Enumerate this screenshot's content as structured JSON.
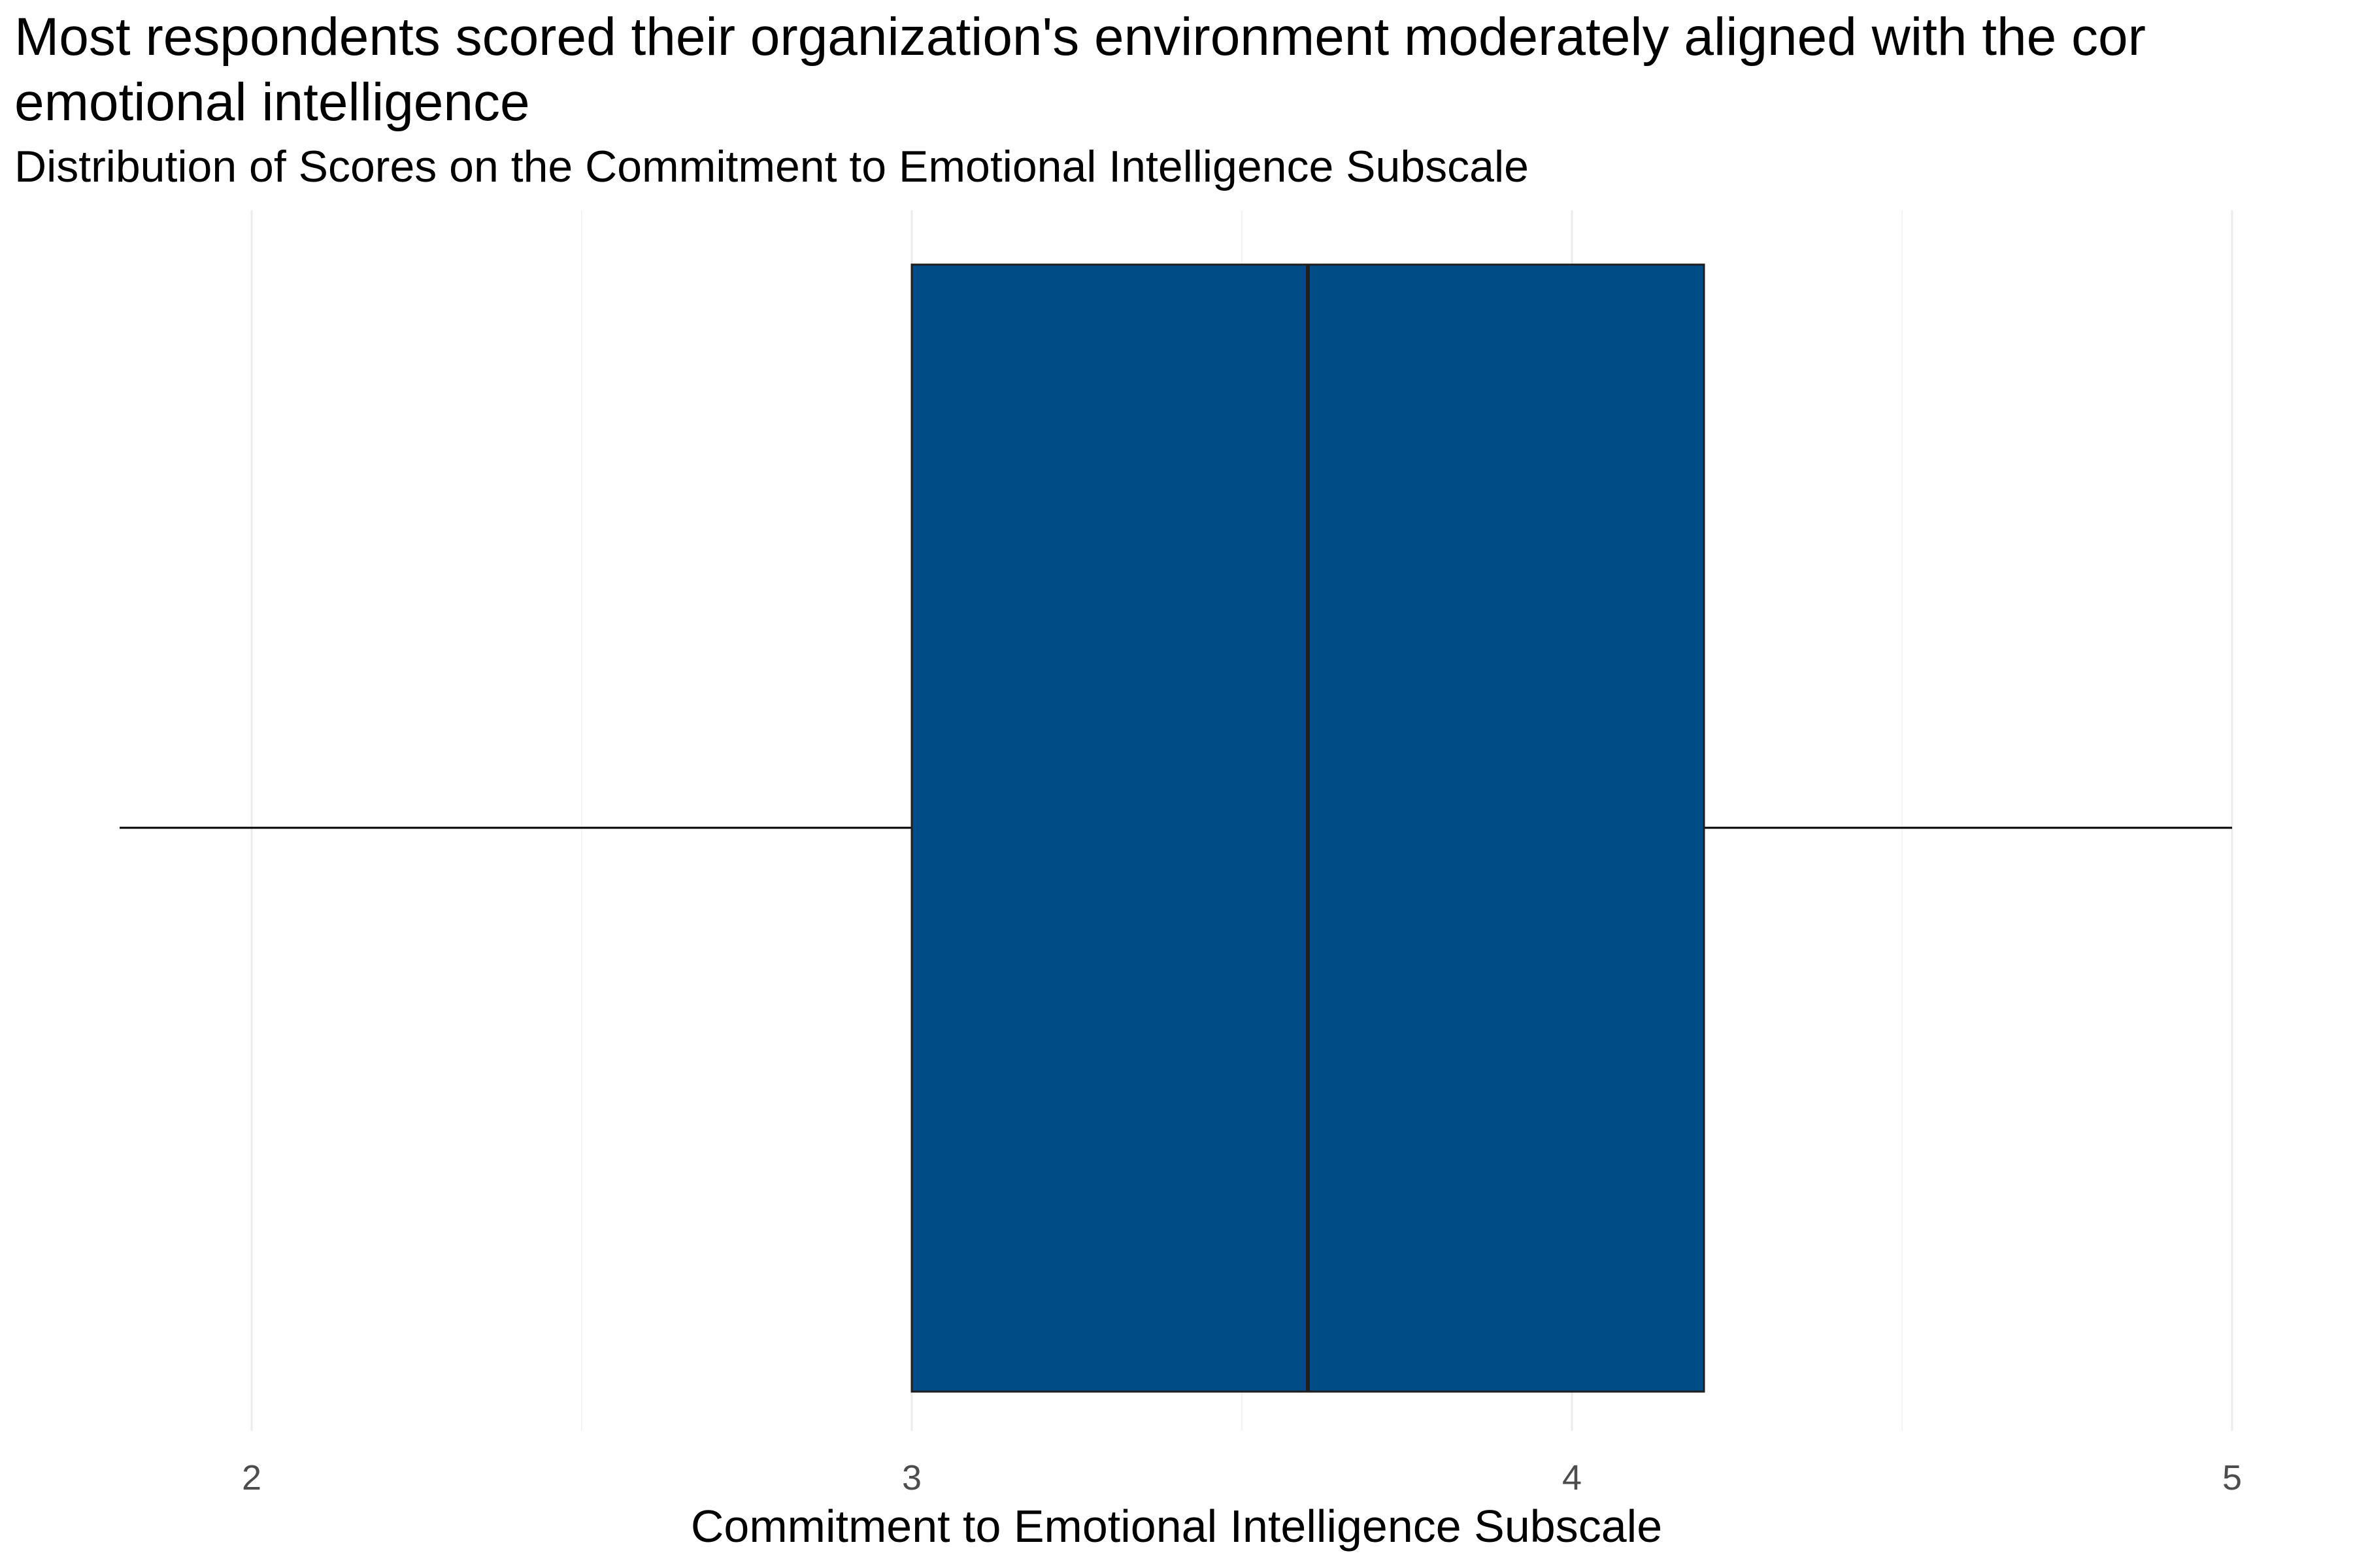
{
  "chart_data": {
    "type": "boxplot",
    "orientation": "horizontal",
    "title_lines": [
      "Most respondents scored their organization's environment moderately aligned with the cor",
      "emotional intelligence"
    ],
    "subtitle": "Distribution of Scores on the Commitment to Emotional Intelligence Subscale",
    "xlabel": "Commitment to Emotional Intelligence Subscale",
    "ylabel": "",
    "xlim": [
      1.8,
      5.0
    ],
    "major_ticks": [
      2,
      3,
      4,
      5
    ],
    "tick_labels": [
      "2",
      "3",
      "4",
      "5"
    ],
    "minor_gridlines": [
      2.5,
      3.5,
      4.5
    ],
    "grid": true,
    "box": {
      "whisker_low": 1.8,
      "q1": 3.0,
      "median": 3.6,
      "q3": 4.2,
      "whisker_high": 5.0
    },
    "colors": {
      "box_fill": "#004C87",
      "box_outline": "#1f1f1f",
      "whisker": "#000000",
      "grid_major": "#ebebeb",
      "grid_minor": "#f4f4f4"
    }
  }
}
